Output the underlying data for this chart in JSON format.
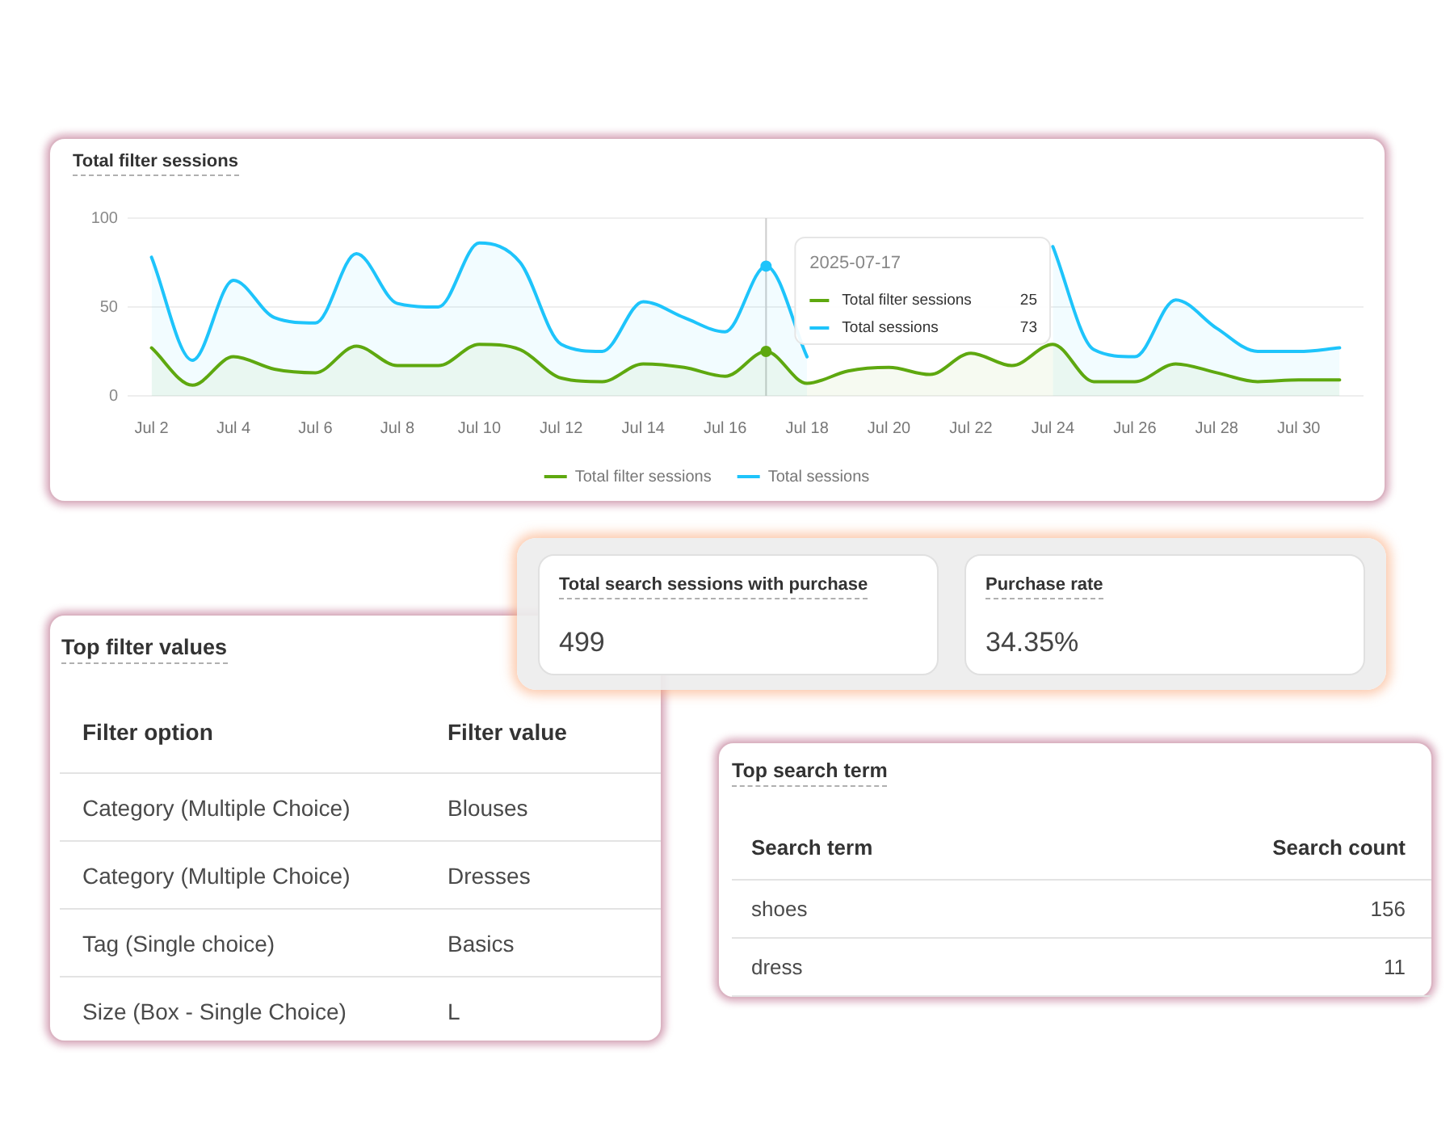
{
  "chart_data": [
    {
      "type": "area",
      "title": "Total filter sessions",
      "x": [
        "2025-07-02",
        "2025-07-03",
        "2025-07-04",
        "2025-07-05",
        "2025-07-06",
        "2025-07-07",
        "2025-07-08",
        "2025-07-09",
        "2025-07-10",
        "2025-07-11",
        "2025-07-12",
        "2025-07-13",
        "2025-07-14",
        "2025-07-15",
        "2025-07-16",
        "2025-07-17",
        "2025-07-18",
        "2025-07-19",
        "2025-07-20",
        "2025-07-21",
        "2025-07-22",
        "2025-07-23",
        "2025-07-24",
        "2025-07-25",
        "2025-07-26",
        "2025-07-27",
        "2025-07-28",
        "2025-07-29",
        "2025-07-30",
        "2025-07-31"
      ],
      "series": [
        {
          "name": "Total filter sessions",
          "color": "#5ea80f",
          "values": [
            27,
            6,
            22,
            15,
            13,
            28,
            17,
            17,
            29,
            26,
            10,
            8,
            18,
            16,
            11,
            25,
            7,
            14,
            16,
            12,
            24,
            17,
            29,
            8,
            8,
            18,
            13,
            8,
            9,
            9
          ]
        },
        {
          "name": "Total sessions",
          "color": "#1ec4fb",
          "values": [
            78,
            20,
            65,
            44,
            41,
            80,
            52,
            50,
            86,
            75,
            29,
            25,
            53,
            44,
            36,
            73,
            22,
            null,
            null,
            null,
            null,
            null,
            84,
            26,
            22,
            54,
            38,
            25,
            25,
            27
          ]
        }
      ],
      "xlim": [
        "2025-07-01T10:00",
        "2025-07-31T14:00"
      ],
      "xticks": [
        {
          "value": "2025-07-02",
          "label": "Jul 2"
        },
        {
          "value": "2025-07-04",
          "label": "Jul 4"
        },
        {
          "value": "2025-07-06",
          "label": "Jul 6"
        },
        {
          "value": "2025-07-08",
          "label": "Jul 8"
        },
        {
          "value": "2025-07-10",
          "label": "Jul 10"
        },
        {
          "value": "2025-07-12",
          "label": "Jul 12"
        },
        {
          "value": "2025-07-14",
          "label": "Jul 14"
        },
        {
          "value": "2025-07-16",
          "label": "Jul 16"
        },
        {
          "value": "2025-07-18",
          "label": "Jul 18"
        },
        {
          "value": "2025-07-20",
          "label": "Jul 20"
        },
        {
          "value": "2025-07-22",
          "label": "Jul 22"
        },
        {
          "value": "2025-07-24",
          "label": "Jul 24"
        },
        {
          "value": "2025-07-26",
          "label": "Jul 26"
        },
        {
          "value": "2025-07-28",
          "label": "Jul 28"
        },
        {
          "value": "2025-07-30",
          "label": "Jul 30"
        }
      ],
      "ylim": [
        0,
        100
      ],
      "yticks": [
        0,
        50,
        100
      ],
      "grid": "y",
      "legend": "bottom",
      "marker": "none",
      "ref_lines": [
        {
          "axis": "x",
          "value": "2025-07-17",
          "label": "2025-07-17",
          "color": "#cccccc"
        }
      ],
      "annotations": [
        "25",
        "73"
      ]
    },
    {
      "type": "other",
      "title": "Total search sessions with purchase",
      "annotations": [
        "499"
      ]
    },
    {
      "type": "other",
      "title": "Purchase rate",
      "annotations": [
        "34.35%"
      ]
    },
    {
      "type": "other",
      "title": "Top filter values",
      "annotations": [
        "Filter option",
        "Filter value",
        "Category (Multiple Choice)",
        "Blouses",
        "Category (Multiple Choice)",
        "Dresses",
        "Tag (Single choice)",
        "Basics",
        "Size (Box - Single Choice)",
        "L"
      ]
    },
    {
      "type": "other",
      "title": "Top search term",
      "xlabel": "Search term",
      "ylabel": "Search count",
      "categories": [
        "shoes",
        "dress"
      ],
      "values": [
        156,
        11
      ],
      "data_labels": true
    }
  ]
}
